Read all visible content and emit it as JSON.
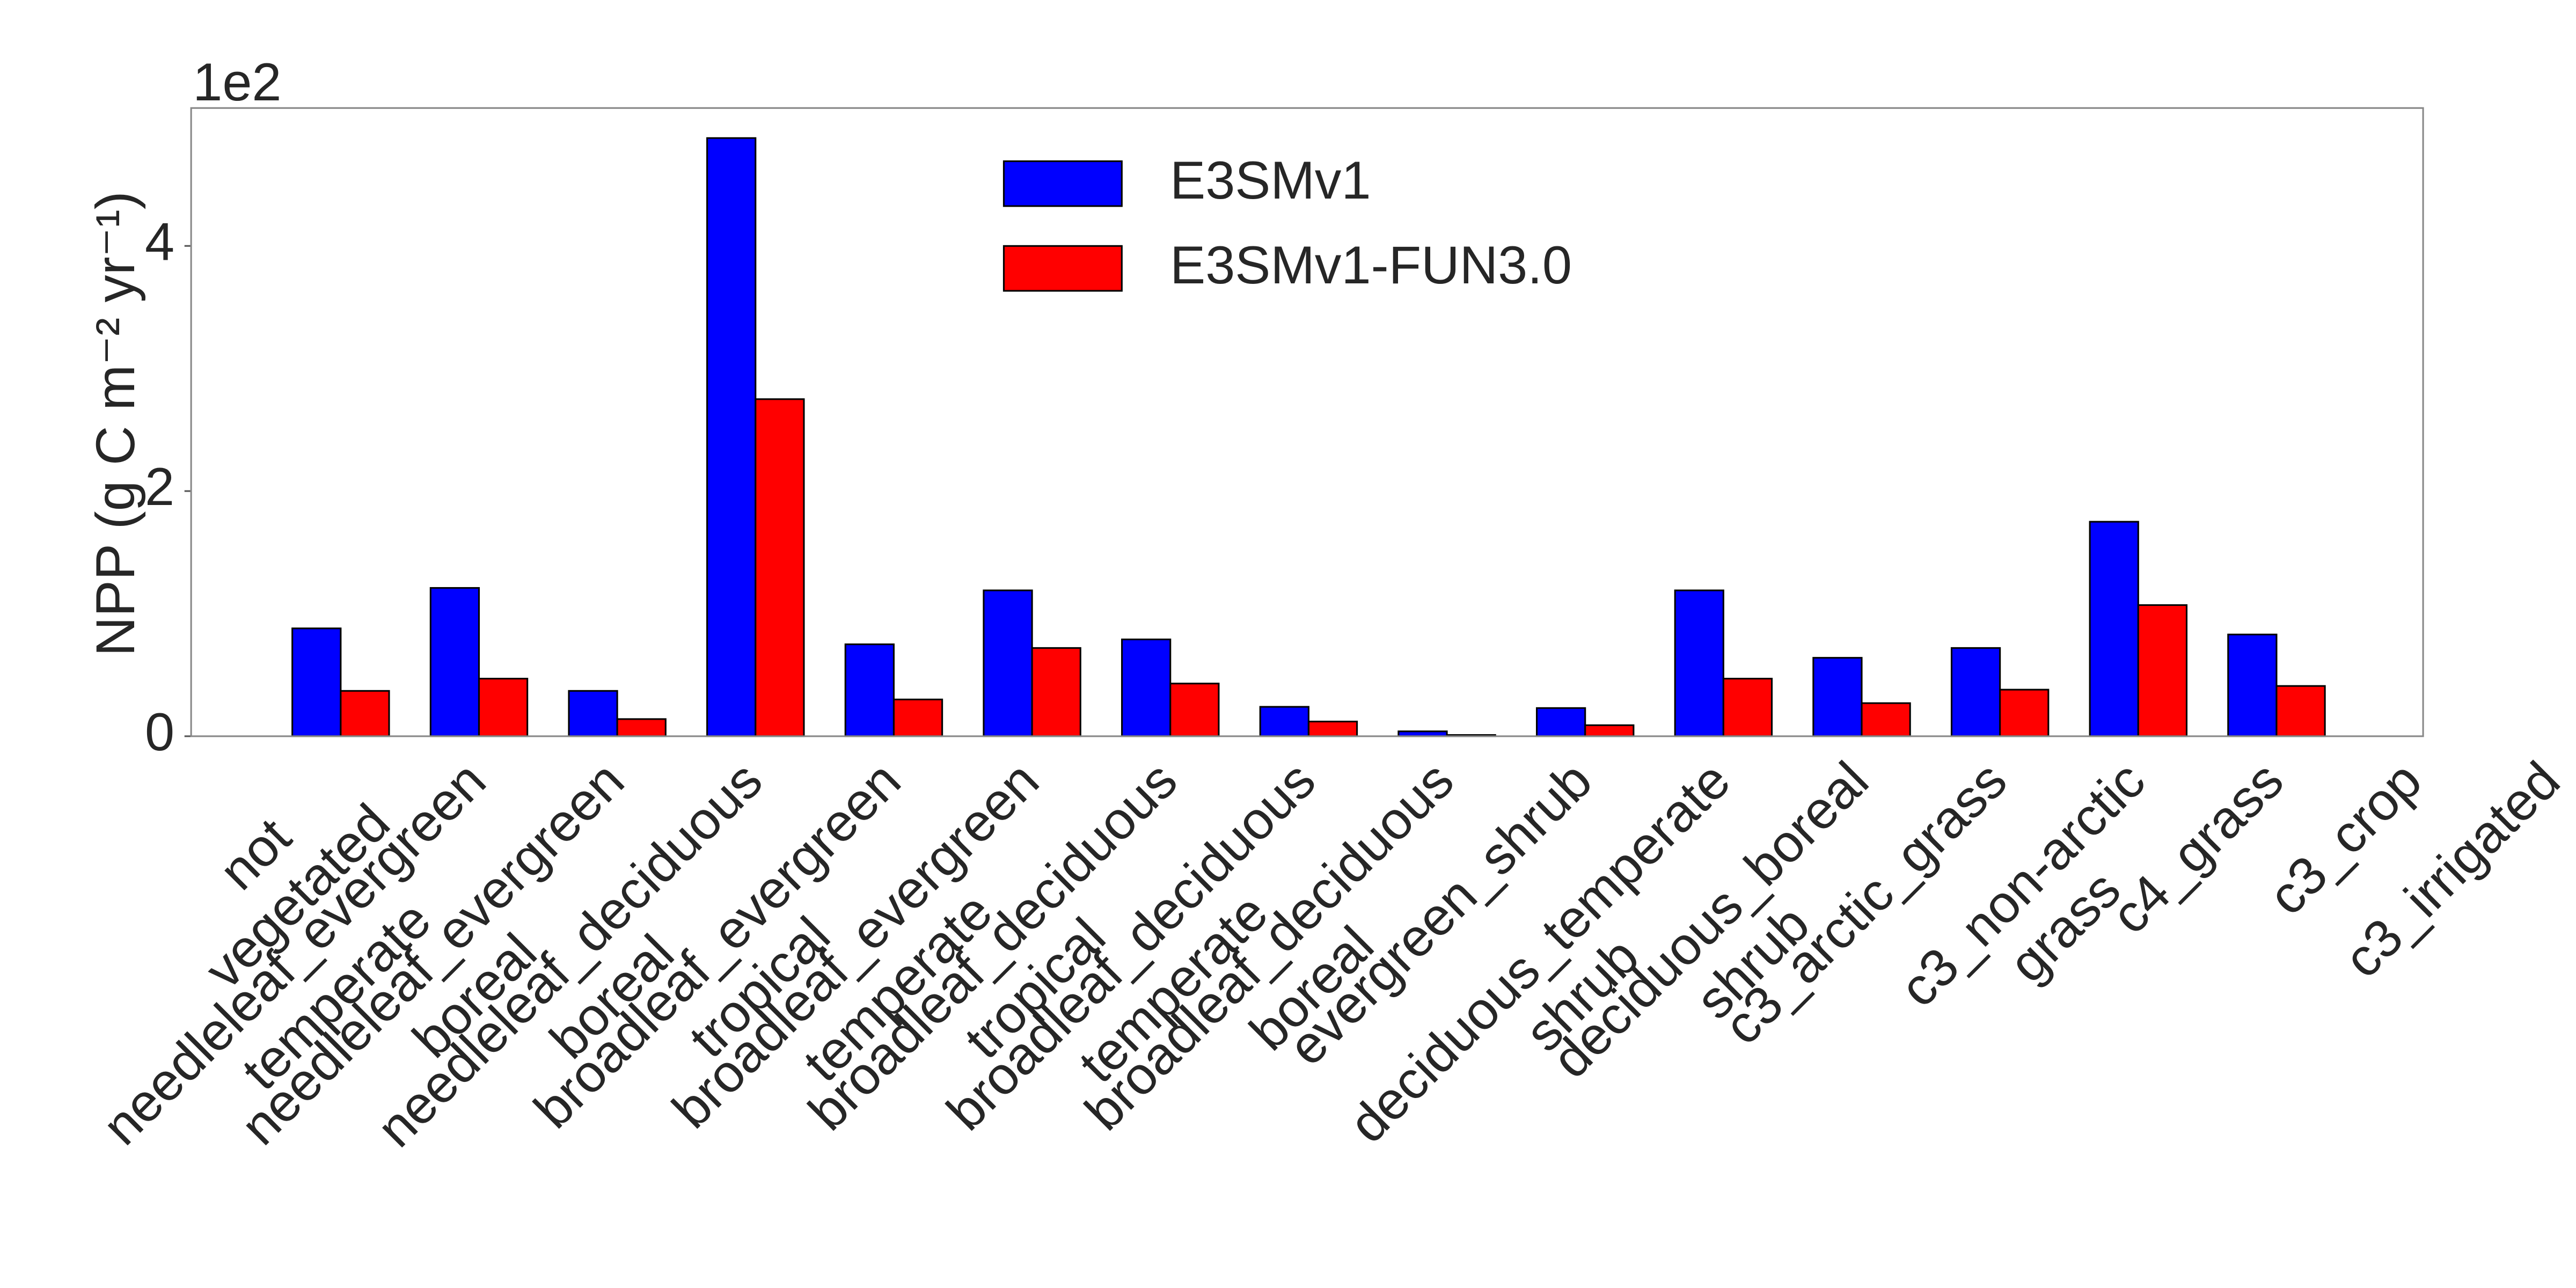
{
  "chart_data": {
    "type": "bar",
    "offset_label": "1e2",
    "y_label": "NPP (g C m⁻² yr⁻¹)",
    "categories": [
      "not\nvegetated",
      "needleleaf_evergreen\ntemperate",
      "needleleaf_evergreen\nboreal",
      "needleleaf_deciduous\nboreal",
      "broadleaf_evergreen\ntropical",
      "broadleaf_evergreen\ntemperate",
      "broadleaf_deciduous\ntropical",
      "broadleaf_deciduous\ntemperate",
      "broadleaf_deciduous\nboreal",
      "evergreen_shrub",
      "deciduous_temperate\nshrub",
      "deciduous_boreal\nshrub",
      "c3_arctic_grass",
      "c3_non-arctic\ngrass",
      "c4_grass",
      "c3_crop",
      "c3_irrigated"
    ],
    "series": [
      {
        "name": "E3SMv1",
        "color": "#0000ff",
        "values": [
          0.88,
          1.21,
          0.37,
          4.88,
          0.75,
          1.19,
          0.79,
          0.24,
          0.04,
          0.23,
          1.19,
          0.64,
          0.72,
          1.75,
          0.83,
          null,
          null
        ]
      },
      {
        "name": "E3SMv1-FUN3.0",
        "color": "#ff0000",
        "values": [
          0.37,
          0.47,
          0.14,
          2.75,
          0.3,
          0.72,
          0.43,
          0.12,
          0.01,
          0.09,
          0.47,
          0.27,
          0.38,
          1.07,
          0.41,
          null,
          null
        ]
      }
    ],
    "ylim": [
      0,
      5.125
    ],
    "yticks": [
      0,
      2,
      4
    ],
    "grid": false,
    "legend": "upper center"
  }
}
